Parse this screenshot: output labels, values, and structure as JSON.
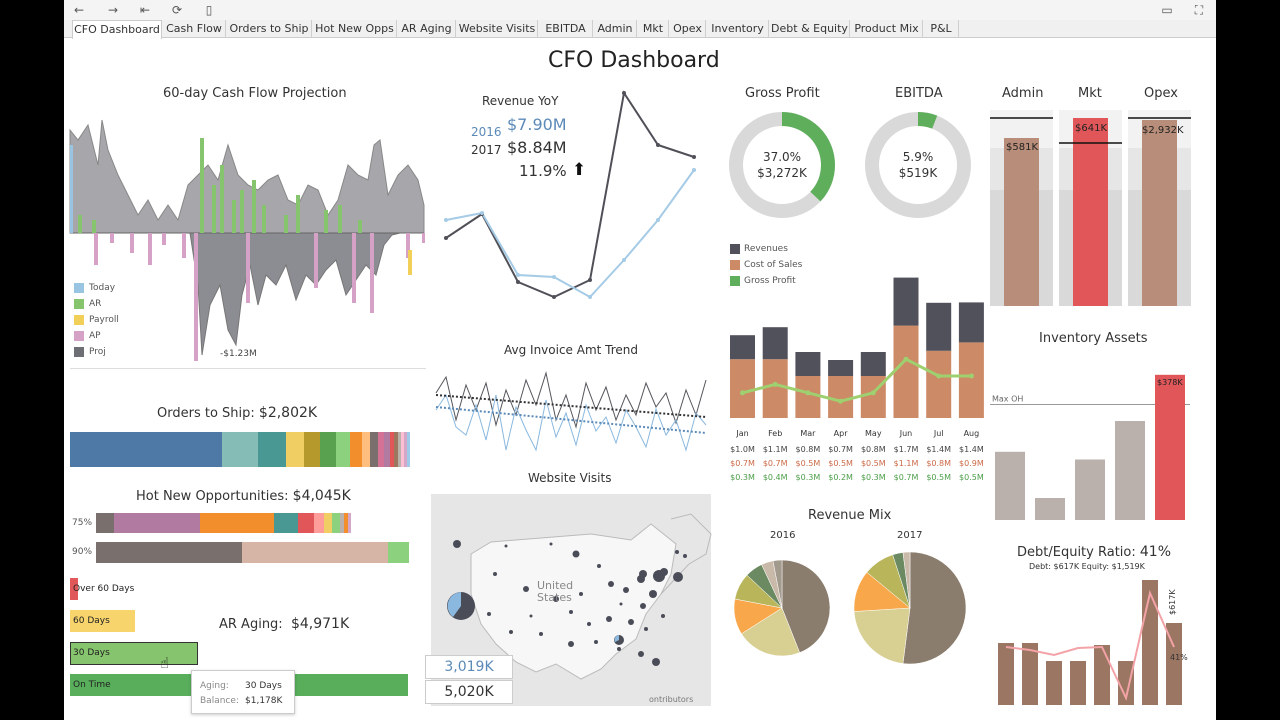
{
  "toolbar": {
    "icons": [
      "back-icon",
      "forward-icon",
      "first-icon",
      "refresh-icon",
      "pause-icon",
      "comment-icon",
      "fullscreen-icon"
    ]
  },
  "tabs": [
    "CFO Dashboard",
    "Cash Flow",
    "Orders to Ship",
    "Hot New Opps",
    "AR Aging",
    "Website Visits",
    "EBITDA",
    "Admin",
    "Mkt",
    "Opex",
    "Inventory",
    "Debt & Equity",
    "Product Mix",
    "P&L"
  ],
  "dashboard_title": "CFO Dashboard",
  "cashflow": {
    "title": "60-day Cash Flow Projection",
    "annotation": "-$1.23M",
    "legend": [
      {
        "label": "Today",
        "color": "#9ac5e2"
      },
      {
        "label": "AR",
        "color": "#86c46d"
      },
      {
        "label": "Payroll",
        "color": "#f1cf59"
      },
      {
        "label": "AP",
        "color": "#d6a1c6"
      },
      {
        "label": "Proj",
        "color": "#6e6e75"
      }
    ]
  },
  "revenue_yoy": {
    "title": "Revenue YoY",
    "y2016": "2016",
    "v2016": "$7.90M",
    "y2017": "2017",
    "v2017": "$8.84M",
    "growth": "11.9%"
  },
  "avg_invoice": {
    "title": "Avg Invoice Amt Trend"
  },
  "website": {
    "title": "Website Visits",
    "map_label_line1": "United",
    "map_label_line2": "States",
    "v1": "3,019K",
    "v2": "5,020K",
    "credit": "ontributors"
  },
  "orders": {
    "title": "Orders to Ship:",
    "value": "$2,802K"
  },
  "opps": {
    "title": "Hot New Opportunities:",
    "value": "$4,045K",
    "row1": "75%",
    "row2": "90%"
  },
  "aging": {
    "title": "AR Aging:",
    "value": "$4,971K",
    "bars": [
      {
        "label": "Over 60 Days",
        "color": "#e0585a"
      },
      {
        "label": "60 Days",
        "color": "#f7d46c"
      },
      {
        "label": "30 Days",
        "color": "#86c46d"
      },
      {
        "label": "On Time",
        "color": "#58ae5b"
      }
    ],
    "tooltip": {
      "k1": "Aging:",
      "v1": "30 Days",
      "k2": "Balance:",
      "v2": "$1,178K"
    }
  },
  "gross_profit": {
    "title": "Gross Profit",
    "pct": "37.0%",
    "value": "$3,272K",
    "fraction": 0.37
  },
  "ebitda": {
    "title": "EBITDA",
    "pct": "5.9%",
    "value": "$519K",
    "fraction": 0.059
  },
  "monthly": {
    "legend": [
      {
        "label": "Revenues",
        "color": "#50515a"
      },
      {
        "label": "Cost of Sales",
        "color": "#cc8a67"
      },
      {
        "label": "Gross Profit",
        "color": "#5fae5b"
      }
    ],
    "months": [
      "Jan",
      "Feb",
      "Mar",
      "Apr",
      "May",
      "Jun",
      "Jul",
      "Aug"
    ],
    "revenue": [
      "$1.0M",
      "$1.1M",
      "$0.8M",
      "$0.7M",
      "$0.8M",
      "$1.7M",
      "$1.4M",
      "$1.4M"
    ],
    "cost": [
      "$0.7M",
      "$0.7M",
      "$0.5M",
      "$0.5M",
      "$0.5M",
      "$1.1M",
      "$0.8M",
      "$0.9M"
    ],
    "gp": [
      "$0.3M",
      "$0.4M",
      "$0.3M",
      "$0.2M",
      "$0.3M",
      "$0.7M",
      "$0.5M",
      "$0.5M"
    ]
  },
  "opex": {
    "admin": "Admin",
    "mkt": "Mkt",
    "opex": "Opex",
    "admin_v": "$581K",
    "mkt_v": "$641K",
    "opex_v": "$2,932K"
  },
  "inventory": {
    "title": "Inventory Assets",
    "max_label": "Max OH",
    "top_value": "$378K"
  },
  "revenue_mix": {
    "title": "Revenue Mix",
    "y1": "2016",
    "y2": "2017"
  },
  "debt": {
    "title": "Debt/Equity Ratio:",
    "value": "41%",
    "sub": "Debt: $617K  Equity: $1,519K",
    "bar_label": "$617K",
    "line_label": "41%"
  },
  "chart_data": [
    {
      "type": "bar",
      "title": "",
      "categories": [
        "Jan",
        "Feb",
        "Mar",
        "Apr",
        "May",
        "Jun",
        "Jul",
        "Aug"
      ],
      "series": [
        {
          "name": "Revenues",
          "values": [
            1.0,
            1.1,
            0.8,
            0.7,
            0.8,
            1.7,
            1.4,
            1.4
          ]
        },
        {
          "name": "Cost of Sales",
          "values": [
            0.7,
            0.7,
            0.5,
            0.5,
            0.5,
            1.1,
            0.8,
            0.9
          ]
        },
        {
          "name": "Gross Profit",
          "values": [
            0.3,
            0.4,
            0.3,
            0.2,
            0.3,
            0.7,
            0.5,
            0.5
          ]
        }
      ]
    },
    {
      "type": "bar",
      "title": "Inventory Assets",
      "values": [
        0.62,
        0.2,
        0.55,
        0.9,
        1.32
      ],
      "max_oh": 1.05
    },
    {
      "type": "pie",
      "title": "2016",
      "values": [
        44,
        22,
        12,
        9,
        6,
        4,
        3
      ]
    },
    {
      "type": "pie",
      "title": "2017",
      "values": [
        52,
        22,
        12,
        9,
        3,
        2
      ]
    }
  ]
}
